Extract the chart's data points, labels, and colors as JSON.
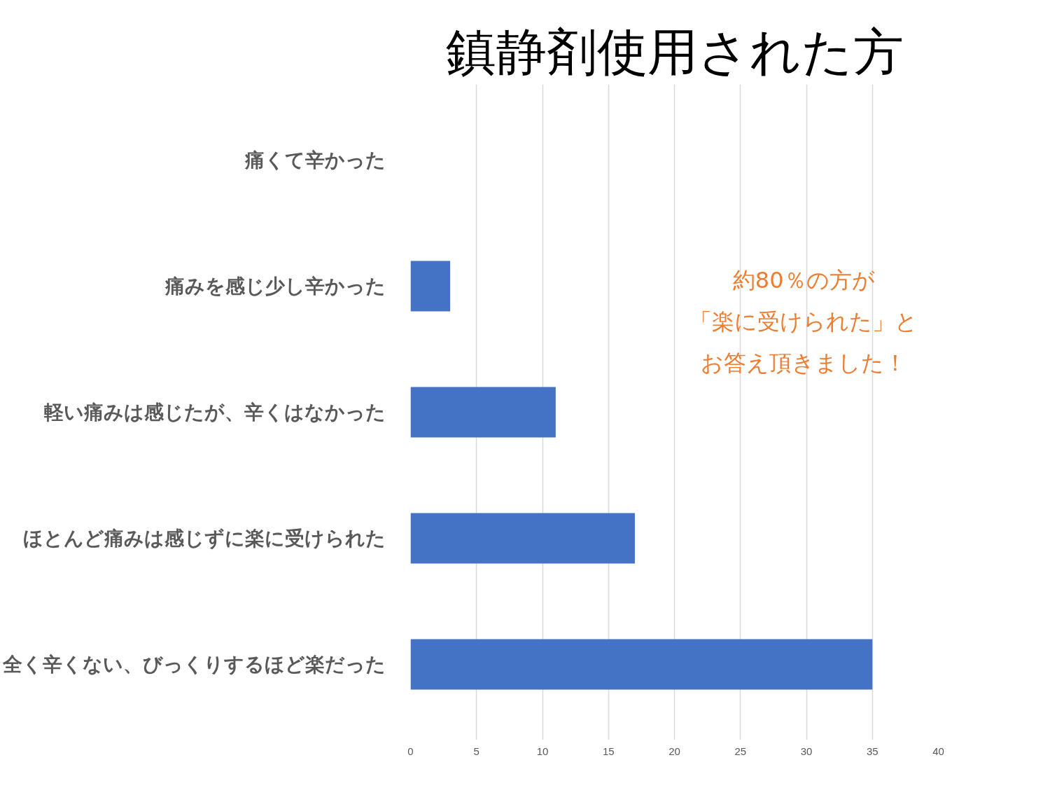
{
  "chart_data": {
    "type": "bar",
    "orientation": "horizontal",
    "title": "鎮静剤使用された方",
    "categories": [
      "痛くて辛かった",
      "痛みを感じ少し辛かった",
      "軽い痛みは感じたが、辛くはなかった",
      "ほとんど痛みは感じずに楽に受けられた",
      "全く辛くない、びっくりするほど楽だった"
    ],
    "values": [
      0,
      3,
      11,
      17,
      35
    ],
    "color": "#4472c4",
    "xlim": [
      0,
      40
    ],
    "xticks": [
      0,
      5,
      10,
      15,
      20,
      25,
      30,
      35,
      40
    ],
    "grid": "x",
    "annotations": [
      "約80％の方が",
      "「楽に受けられた」と",
      "お答え頂きました！"
    ]
  }
}
